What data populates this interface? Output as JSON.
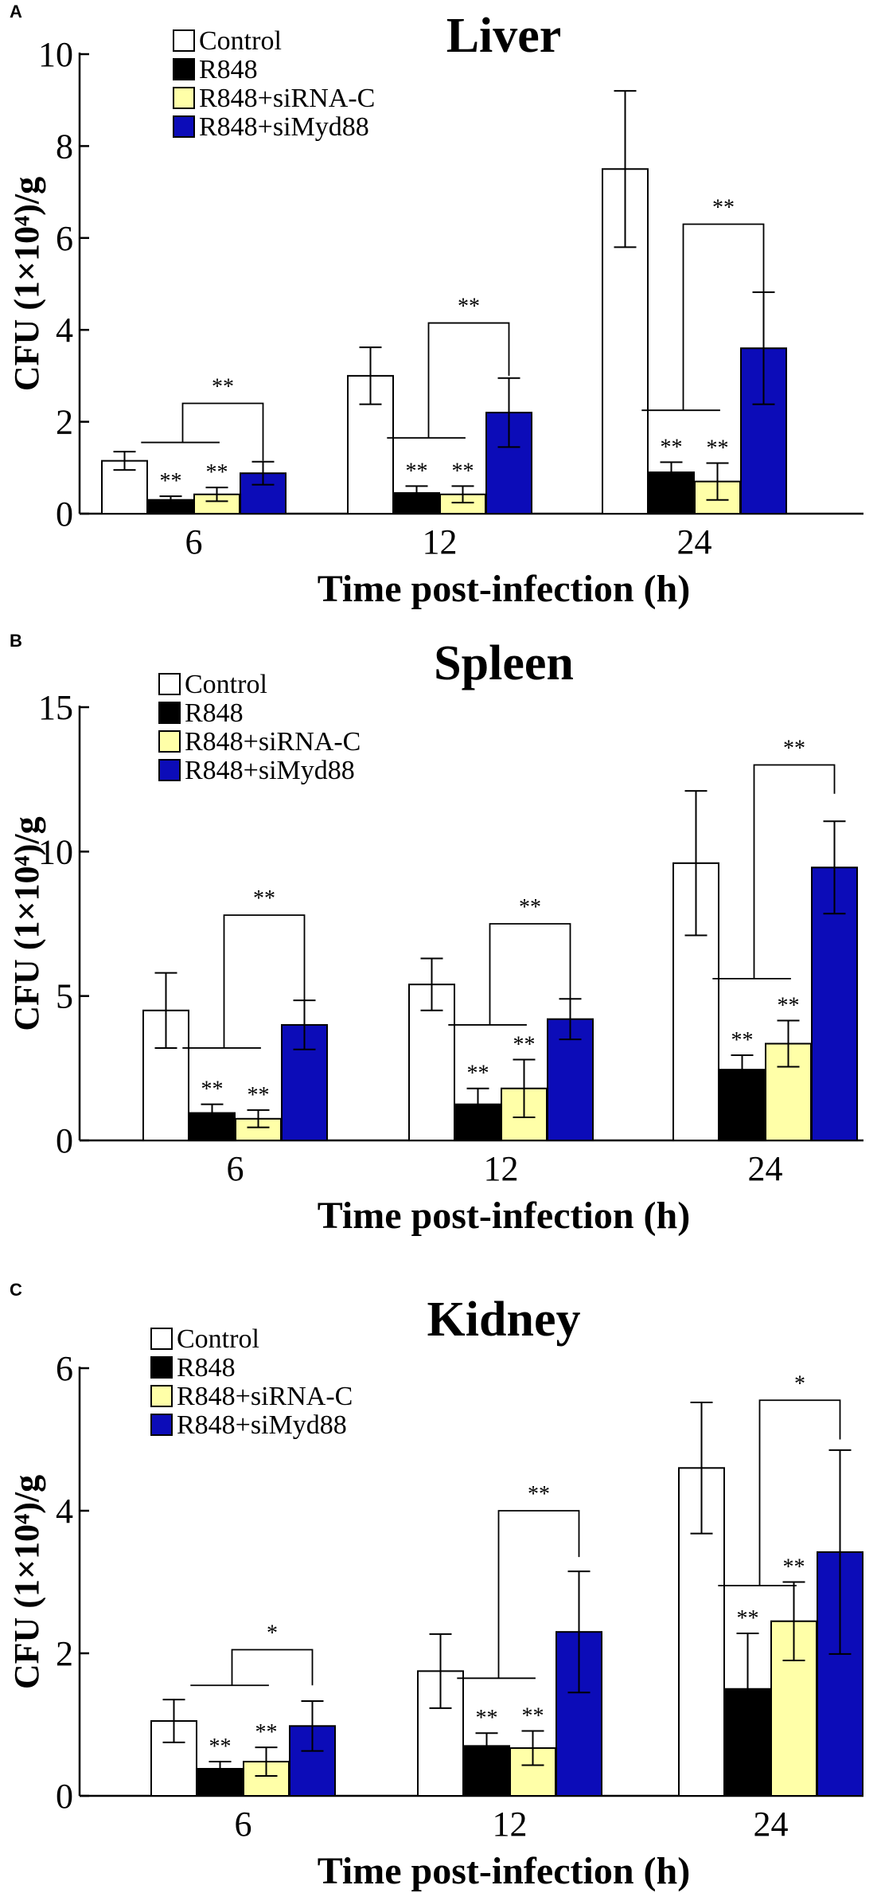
{
  "figure": {
    "legend_entries": [
      "Control",
      "R848",
      "R848+siRNA-C",
      "R848+siMyd88"
    ],
    "series_colors": [
      "#ffffff",
      "#000000",
      "#ffffa8",
      "#0c0cb8"
    ]
  },
  "chart_data": [
    {
      "type": "bar",
      "panel": "A",
      "title": "Liver",
      "xlabel": "Time post-infection (h)",
      "ylabel": "CFU (1×10⁴)/g",
      "ylim": [
        0,
        10
      ],
      "yticks": [
        "0",
        "2",
        "4",
        "6",
        "8",
        "10"
      ],
      "categories": [
        "6",
        "12",
        "24"
      ],
      "series": [
        {
          "name": "Control",
          "values": [
            1.15,
            3.0,
            7.5
          ],
          "errors": [
            0.2,
            0.62,
            1.7
          ],
          "labels": [
            "",
            "",
            ""
          ]
        },
        {
          "name": "R848",
          "values": [
            0.3,
            0.45,
            0.9
          ],
          "errors": [
            0.08,
            0.15,
            0.22
          ],
          "labels": [
            "**",
            "**",
            "**"
          ]
        },
        {
          "name": "R848+siRNA-C",
          "values": [
            0.42,
            0.42,
            0.7
          ],
          "errors": [
            0.15,
            0.18,
            0.4
          ],
          "labels": [
            "**",
            "**",
            "**"
          ]
        },
        {
          "name": "R848+siMyd88",
          "values": [
            0.88,
            2.2,
            3.6
          ],
          "errors": [
            0.25,
            0.75,
            1.22
          ],
          "labels": [
            "",
            "",
            ""
          ]
        }
      ],
      "comparisons": [
        {
          "label": "**",
          "left_y": 1.55,
          "top_y": 2.4,
          "right_y": 1.15
        },
        {
          "label": "**",
          "left_y": 1.65,
          "top_y": 4.15,
          "right_y": 3.0
        },
        {
          "label": "**",
          "left_y": 2.25,
          "top_y": 6.3,
          "right_y": 4.8
        }
      ]
    },
    {
      "type": "bar",
      "panel": "B",
      "title": "Spleen",
      "xlabel": "Time post-infection (h)",
      "ylabel": "CFU (1×10⁴)/g",
      "ylim": [
        0,
        15
      ],
      "yticks": [
        "0",
        "5",
        "10",
        "15"
      ],
      "categories": [
        "6",
        "12",
        "24"
      ],
      "series": [
        {
          "name": "Control",
          "values": [
            4.5,
            5.4,
            9.6
          ],
          "errors": [
            1.3,
            0.9,
            2.5
          ],
          "labels": [
            "",
            "",
            ""
          ]
        },
        {
          "name": "R848",
          "values": [
            0.95,
            1.25,
            2.45
          ],
          "errors": [
            0.3,
            0.55,
            0.5
          ],
          "labels": [
            "**",
            "**",
            "**"
          ]
        },
        {
          "name": "R848+siRNA-C",
          "values": [
            0.75,
            1.8,
            3.35
          ],
          "errors": [
            0.3,
            1.0,
            0.8
          ],
          "labels": [
            "**",
            "**",
            "**"
          ]
        },
        {
          "name": "R848+siMyd88",
          "values": [
            4.0,
            4.2,
            9.45
          ],
          "errors": [
            0.85,
            0.7,
            1.6
          ],
          "labels": [
            "",
            "",
            ""
          ]
        }
      ],
      "comparisons": [
        {
          "label": "**",
          "left_y": 3.2,
          "top_y": 7.8,
          "right_y": 4.85
        },
        {
          "label": "**",
          "left_y": 4.0,
          "top_y": 7.5,
          "right_y": 4.9
        },
        {
          "label": "**",
          "left_y": 5.6,
          "top_y": 13.0,
          "right_y": 12.0
        }
      ]
    },
    {
      "type": "bar",
      "panel": "C",
      "title": "Kidney",
      "xlabel": "Time post-infection (h)",
      "ylabel": "CFU (1×10⁴)/g",
      "ylim": [
        0,
        6
      ],
      "yticks": [
        "0",
        "2",
        "4",
        "6"
      ],
      "categories": [
        "6",
        "12",
        "24"
      ],
      "series": [
        {
          "name": "Control",
          "values": [
            1.05,
            1.75,
            4.6
          ],
          "errors": [
            0.3,
            0.52,
            0.92
          ],
          "labels": [
            "",
            "",
            ""
          ]
        },
        {
          "name": "R848",
          "values": [
            0.38,
            0.7,
            1.5
          ],
          "errors": [
            0.1,
            0.18,
            0.78
          ],
          "labels": [
            "**",
            "**",
            "**"
          ]
        },
        {
          "name": "R848+siRNA-C",
          "values": [
            0.48,
            0.67,
            2.45
          ],
          "errors": [
            0.2,
            0.24,
            0.55
          ],
          "labels": [
            "**",
            "**",
            "**"
          ]
        },
        {
          "name": "R848+siMyd88",
          "values": [
            0.98,
            2.3,
            3.42
          ],
          "errors": [
            0.35,
            0.85,
            1.43
          ],
          "labels": [
            "",
            "",
            ""
          ]
        }
      ],
      "comparisons": [
        {
          "label": "*",
          "left_y": 1.55,
          "top_y": 2.05,
          "right_y": 1.55
        },
        {
          "label": "**",
          "left_y": 1.65,
          "top_y": 4.0,
          "right_y": 3.35
        },
        {
          "label": "*",
          "left_y": 2.95,
          "top_y": 5.55,
          "right_y": 5.0
        }
      ]
    }
  ]
}
